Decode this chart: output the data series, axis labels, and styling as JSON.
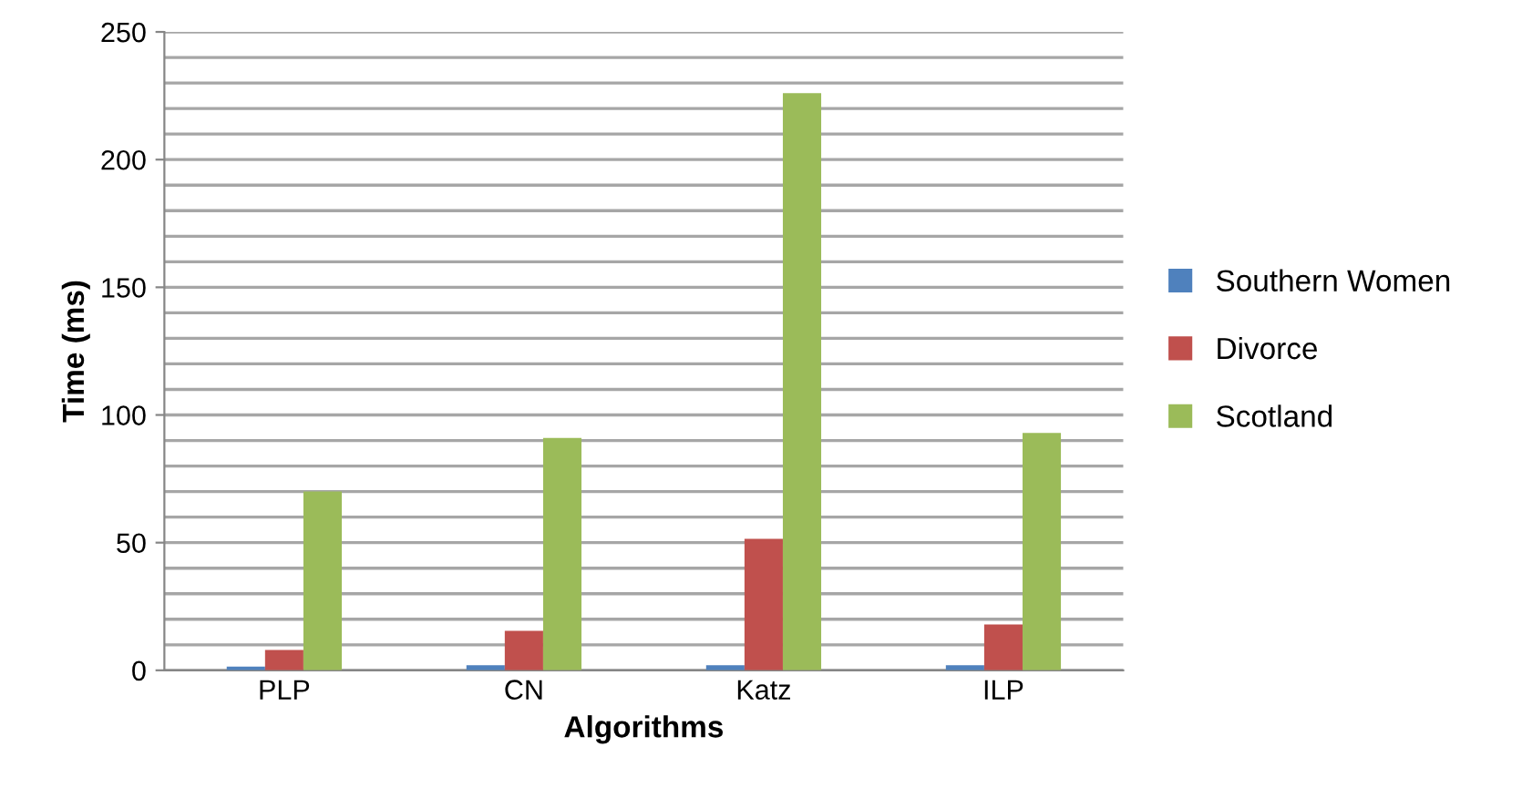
{
  "chart_data": {
    "type": "bar",
    "xlabel": "Algorithms",
    "ylabel": "Time (ms)",
    "categories": [
      "PLP",
      "CN",
      "Katz",
      "ILP"
    ],
    "series": [
      {
        "name": "Southern Women",
        "color": "#4f81bd",
        "values": [
          1.5,
          2,
          2,
          2
        ]
      },
      {
        "name": "Divorce",
        "color": "#c0504d",
        "values": [
          8,
          15.5,
          51.5,
          18
        ]
      },
      {
        "name": "Scotland",
        "color": "#9bbb59",
        "values": [
          70,
          91,
          226,
          93
        ]
      }
    ],
    "ylim": [
      0,
      250
    ],
    "yticks": [
      0,
      {
        "value": 10,
        "label": null
      },
      {
        "value": 20,
        "label": null
      },
      {
        "value": 30,
        "label": null
      },
      {
        "value": 40,
        "label": null
      },
      50,
      {
        "value": 60,
        "label": null
      },
      {
        "value": 70,
        "label": null
      },
      {
        "value": 80,
        "label": null
      },
      {
        "value": 90,
        "label": null
      },
      100,
      {
        "value": 110,
        "label": null
      },
      {
        "value": 120,
        "label": null
      },
      {
        "value": 130,
        "label": null
      },
      {
        "value": 140,
        "label": null
      },
      150,
      {
        "value": 160,
        "label": null
      },
      {
        "value": 170,
        "label": null
      },
      {
        "value": 180,
        "label": null
      },
      {
        "value": 190,
        "label": null
      },
      200,
      {
        "value": 210,
        "label": null
      },
      {
        "value": 220,
        "label": null
      },
      {
        "value": 230,
        "label": null
      },
      {
        "value": 240,
        "label": null
      },
      250
    ],
    "grid": "y",
    "legend": "right"
  }
}
